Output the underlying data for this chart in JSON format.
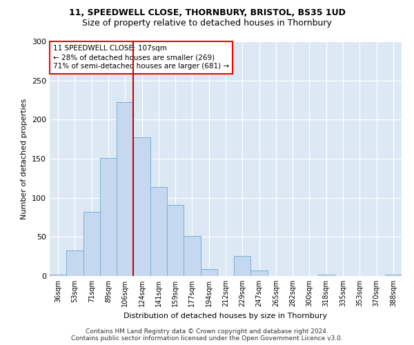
{
  "title1": "11, SPEEDWELL CLOSE, THORNBURY, BRISTOL, BS35 1UD",
  "title2": "Size of property relative to detached houses in Thornbury",
  "xlabel": "Distribution of detached houses by size in Thornbury",
  "ylabel": "Number of detached properties",
  "footer1": "Contains HM Land Registry data © Crown copyright and database right 2024.",
  "footer2": "Contains public sector information licensed under the Open Government Licence v3.0.",
  "annotation_line1": "11 SPEEDWELL CLOSE: 107sqm",
  "annotation_line2": "← 28% of detached houses are smaller (269)",
  "annotation_line3": "71% of semi-detached houses are larger (681) →",
  "bar_color": "#c5d8f0",
  "bar_edge_color": "#7aafd4",
  "vline_color": "#cc0000",
  "background_color": "#dce9f5",
  "categories": [
    "36sqm",
    "53sqm",
    "71sqm",
    "89sqm",
    "106sqm",
    "124sqm",
    "141sqm",
    "159sqm",
    "177sqm",
    "194sqm",
    "212sqm",
    "229sqm",
    "247sqm",
    "265sqm",
    "282sqm",
    "300sqm",
    "318sqm",
    "335sqm",
    "353sqm",
    "370sqm",
    "388sqm"
  ],
  "values": [
    2,
    33,
    82,
    151,
    222,
    177,
    114,
    91,
    51,
    9,
    0,
    26,
    7,
    0,
    0,
    0,
    2,
    0,
    0,
    0,
    2
  ],
  "ylim": [
    0,
    300
  ],
  "vline_x_index": 4.5,
  "title1_fontsize": 9,
  "title2_fontsize": 9,
  "ylabel_fontsize": 8,
  "xlabel_fontsize": 8,
  "tick_fontsize": 7,
  "footer_fontsize": 6.5,
  "ann_fontsize": 7.5
}
